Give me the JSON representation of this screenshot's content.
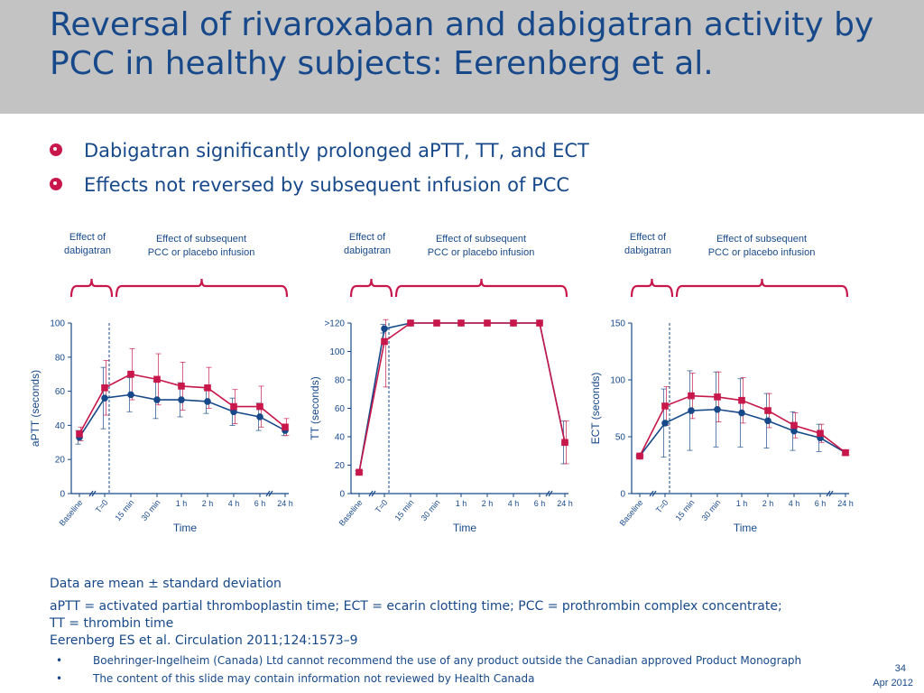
{
  "title": "Reversal of rivaroxaban and dabigatran activity by PCC in healthy subjects: Eerenberg et al.",
  "bullets": [
    "Dabigatran significantly prolonged aPTT, TT, and ECT",
    "Effects not reversed by subsequent infusion of PCC"
  ],
  "annotations": {
    "effect_dabigatran": [
      "Effect of",
      "dabigatran"
    ],
    "effect_pcc": [
      "Effect of subsequent",
      "PCC or placebo infusion"
    ]
  },
  "colors": {
    "pcc": "#c8174a",
    "placebo": "#17498a",
    "header_bg": "#c3c3c3"
  },
  "chart_data": [
    {
      "type": "line",
      "xlabel": "Time",
      "ylabel": "aPTT (seconds)",
      "ylim": [
        0,
        100
      ],
      "yticks": [
        "0",
        "20",
        "40",
        "60",
        "80",
        "100"
      ],
      "categories": [
        "Baseline",
        "T=0",
        "15 min",
        "30 min",
        "1 h",
        "2 h",
        "4 h",
        "6 h",
        "24 h"
      ],
      "series": [
        {
          "values": [
            33,
            56,
            58,
            55,
            55,
            54,
            48,
            45,
            37
          ],
          "sd": [
            4,
            18,
            10,
            11,
            10,
            7,
            8,
            8,
            3
          ]
        },
        {
          "values": [
            35,
            62,
            70,
            67,
            63,
            62,
            51,
            51,
            39
          ],
          "sd": [
            4,
            16,
            15,
            15,
            14,
            12,
            10,
            12,
            5
          ]
        }
      ]
    },
    {
      "type": "line",
      "xlabel": "Time",
      "ylabel": "TT (seconds)",
      "ylim": [
        0,
        120
      ],
      "yticks": [
        "0",
        "20",
        "40",
        "60",
        "80",
        "100",
        ">120"
      ],
      "categories": [
        "Baseline",
        "T=0",
        "15 min",
        "30 min",
        "1 h",
        "2 h",
        "4 h",
        "6 h",
        "24 h"
      ],
      "series": [
        {
          "values": [
            15,
            116,
            120,
            120,
            120,
            120,
            120,
            120,
            36
          ],
          "sd": [
            1,
            3,
            0,
            0,
            0,
            0,
            0,
            0,
            15
          ]
        },
        {
          "values": [
            15,
            107,
            120,
            120,
            120,
            120,
            120,
            120,
            36
          ],
          "sd": [
            1,
            32,
            0,
            0,
            0,
            0,
            0,
            0,
            15
          ]
        }
      ]
    },
    {
      "type": "line",
      "xlabel": "Time",
      "ylabel": "ECT (seconds)",
      "ylim": [
        0,
        150
      ],
      "yticks": [
        "0",
        "50",
        "100",
        "150"
      ],
      "categories": [
        "Baseline",
        "T=0",
        "15 min",
        "30 min",
        "1 h",
        "2 h",
        "4 h",
        "6 h",
        "24 h"
      ],
      "series": [
        {
          "values": [
            33,
            62,
            73,
            74,
            71,
            64,
            55,
            49,
            36
          ],
          "sd": [
            1,
            30,
            35,
            33,
            30,
            24,
            17,
            12,
            2
          ]
        },
        {
          "values": [
            33,
            77,
            86,
            85,
            82,
            73,
            60,
            53,
            36
          ],
          "sd": [
            1,
            17,
            20,
            22,
            20,
            15,
            11,
            8,
            2
          ]
        }
      ]
    }
  ],
  "footnotes": {
    "data_note": "Data are mean ± standard deviation",
    "abbrev_1": "aPTT = activated partial thromboplastin time; ECT = ecarin clotting time; PCC = prothrombin complex concentrate;",
    "abbrev_2": "TT = thrombin time",
    "reference": "Eerenberg ES et al. Circulation 2011;124:1573–9"
  },
  "disclaimers": [
    "Boehringer-Ingelheim (Canada) Ltd cannot recommend the use of any product outside the Canadian approved Product Monograph",
    "The content of this slide may contain information not reviewed by Health Canada"
  ],
  "slide_number": "34",
  "date": "Apr 2012"
}
